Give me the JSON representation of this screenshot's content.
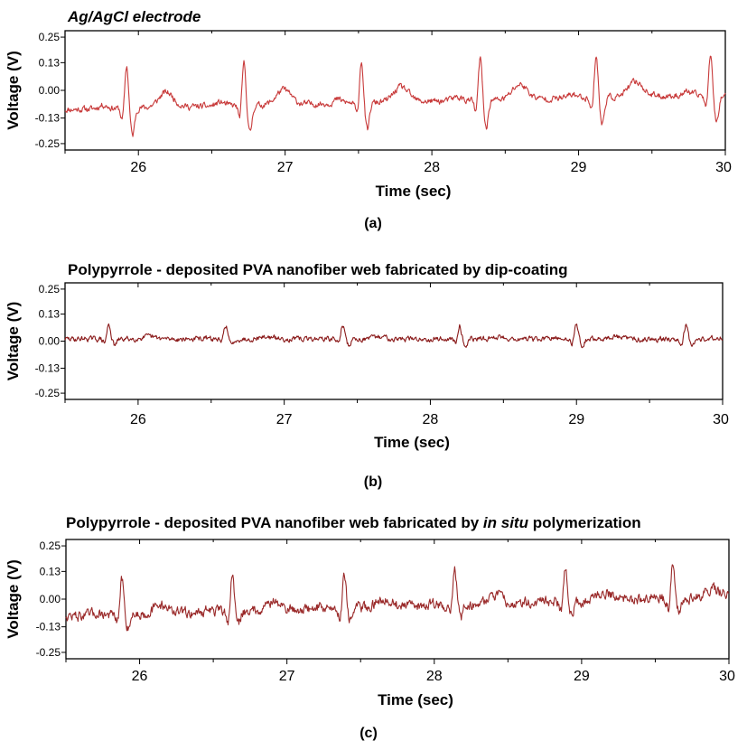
{
  "colors": {
    "trace_a": "#c83a3a",
    "trace_b": "#8a1a1a",
    "trace_c": "#9a2a2a"
  },
  "chart_data": [
    {
      "type": "line",
      "title": "Ag/AgCl electrode",
      "title_parts": [
        {
          "text": "Ag/AgCl electrode",
          "italic": true
        }
      ],
      "panel_label": "(a)",
      "xlabel": "Time (sec)",
      "ylabel": "Voltage (V)",
      "xlim": [
        25.5,
        30
      ],
      "ylim": [
        -0.28,
        0.28
      ],
      "xticks": [
        26,
        27,
        28,
        29,
        30
      ],
      "xtick_labels": [
        "26",
        "27",
        "28",
        "29",
        "30"
      ],
      "yticks": [
        0.25,
        0.13,
        0.0,
        -0.13,
        -0.25
      ],
      "ytick_labels": [
        "0.25",
        "0.13",
        "0.00",
        "-0.13",
        "-0.25"
      ],
      "signal": {
        "baseline_start": -0.09,
        "baseline_end": -0.02,
        "r_peak_times": [
          25.92,
          26.72,
          27.52,
          28.33,
          29.12,
          29.9
        ],
        "r_amplitude": 0.2,
        "s_depth": -0.13,
        "t_amplitude": 0.07,
        "noise": 0.012
      }
    },
    {
      "type": "line",
      "title": "Polypyrrole - deposited PVA nanofiber web fabricated by dip-coating",
      "title_parts": [
        {
          "text": "Polypyrrole - deposited PVA nanofiber web fabricated by dip-coating",
          "italic": false
        }
      ],
      "panel_label": "(b)",
      "xlabel": "Time (sec)",
      "ylabel": "Voltage (V)",
      "xlim": [
        25.5,
        30
      ],
      "ylim": [
        -0.28,
        0.28
      ],
      "xticks": [
        26,
        27,
        28,
        29,
        30
      ],
      "xtick_labels": [
        "26",
        "27",
        "28",
        "29",
        "30"
      ],
      "yticks": [
        0.25,
        0.13,
        0.0,
        -0.13,
        -0.25
      ],
      "ytick_labels": [
        "0.25",
        "0.13",
        "0.00",
        "-0.13",
        "-0.25"
      ],
      "signal": {
        "baseline_start": 0.01,
        "baseline_end": 0.01,
        "r_peak_times": [
          25.8,
          26.6,
          27.4,
          28.2,
          29.0,
          29.75
        ],
        "r_amplitude": 0.07,
        "s_depth": -0.03,
        "t_amplitude": 0.01,
        "noise": 0.01
      }
    },
    {
      "type": "line",
      "title": "Polypyrrole - deposited PVA nanofiber web fabricated by in situ polymerization",
      "title_parts": [
        {
          "text": "Polypyrrole - deposited PVA nanofiber web fabricated by ",
          "italic": false
        },
        {
          "text": "in situ",
          "italic": true
        },
        {
          "text": " polymerization",
          "italic": false
        }
      ],
      "panel_label": "(c)",
      "xlabel": "Time (sec)",
      "ylabel": "Voltage (V)",
      "xlim": [
        25.5,
        30
      ],
      "ylim": [
        -0.28,
        0.28
      ],
      "xticks": [
        26,
        27,
        28,
        29,
        30
      ],
      "xtick_labels": [
        "26",
        "27",
        "28",
        "29",
        "30"
      ],
      "yticks": [
        0.25,
        0.13,
        0.0,
        -0.13,
        -0.25
      ],
      "ytick_labels": [
        "0.25",
        "0.13",
        "0.00",
        "-0.13",
        "-0.25"
      ],
      "signal": {
        "baseline_start": -0.08,
        "baseline_end": 0.01,
        "r_peak_times": [
          25.88,
          26.63,
          27.39,
          28.14,
          28.89,
          29.62
        ],
        "r_amplitude": 0.17,
        "s_depth": -0.06,
        "t_amplitude": 0.04,
        "noise": 0.02
      }
    }
  ]
}
